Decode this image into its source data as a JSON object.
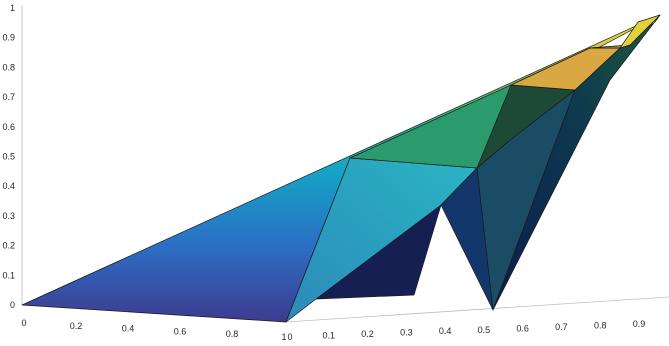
{
  "chart_data": {
    "type": "surface",
    "colormap": "parula",
    "z_axis": {
      "range": [
        0,
        1
      ],
      "tick_labels": [
        "0",
        "0.1",
        "0.2",
        "0.3",
        "0.4",
        "0.5",
        "0.6",
        "0.7",
        "0.8",
        "0.9",
        "1"
      ]
    },
    "x_axis": {
      "range": [
        0,
        1
      ],
      "tick_labels": [
        "0",
        "0.2",
        "0.4",
        "0.6",
        "0.8",
        "1"
      ]
    },
    "y_axis": {
      "range": [
        0,
        1
      ],
      "tick_labels": [
        "0",
        "0.1",
        "0.2",
        "0.3",
        "0.4",
        "0.5",
        "0.6",
        "0.7",
        "0.8",
        "0.9"
      ]
    },
    "grid": false,
    "legend": "none"
  }
}
